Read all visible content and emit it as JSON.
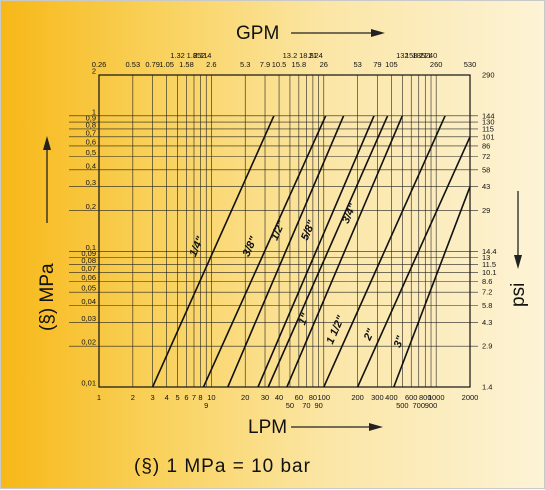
{
  "chart_data": {
    "type": "line",
    "x_scale": "log",
    "y_scale": "log",
    "xlim": [
      1,
      2000
    ],
    "ylim": [
      0.01,
      2
    ],
    "grid": true,
    "top_label": "GPM",
    "bottom_label": "LPM",
    "left_label": "(§) MPa",
    "right_label": "psi",
    "footnote": "(§)   1 MPa = 10 bar",
    "x_ticks_lpm": [
      {
        "v": 1,
        "t": "1"
      },
      {
        "v": 2,
        "t": "2"
      },
      {
        "v": 3,
        "t": "3"
      },
      {
        "v": 4,
        "t": "4"
      },
      {
        "v": 5,
        "t": "5"
      },
      {
        "v": 6,
        "t": "6"
      },
      {
        "v": 7,
        "t": "7"
      },
      {
        "v": 8,
        "t": "8"
      },
      {
        "v": 9,
        "t": "9"
      },
      {
        "v": 10,
        "t": "10"
      },
      {
        "v": 20,
        "t": "20"
      },
      {
        "v": 30,
        "t": "30"
      },
      {
        "v": 40,
        "t": "40"
      },
      {
        "v": 50,
        "t": "50"
      },
      {
        "v": 60,
        "t": "60"
      },
      {
        "v": 70,
        "t": "70"
      },
      {
        "v": 80,
        "t": "80"
      },
      {
        "v": 90,
        "t": "90"
      },
      {
        "v": 100,
        "t": "100"
      },
      {
        "v": 200,
        "t": "200"
      },
      {
        "v": 300,
        "t": "300"
      },
      {
        "v": 400,
        "t": "400"
      },
      {
        "v": 500,
        "t": "500"
      },
      {
        "v": 600,
        "t": "600"
      },
      {
        "v": 700,
        "t": "700"
      },
      {
        "v": 800,
        "t": "800"
      },
      {
        "v": 900,
        "t": "900"
      },
      {
        "v": 1000,
        "t": "1000"
      },
      {
        "v": 2000,
        "t": "2000"
      }
    ],
    "x_ticks_gpm": [
      "0.26",
      "0.53",
      "0.79",
      "1.05",
      "1.32",
      "1.58",
      "1.85",
      "2.11",
      "2.4",
      "2.6",
      "5.3",
      "7.9",
      "10.5",
      "13.2",
      "15.8",
      "18.5",
      "21",
      "24",
      "26",
      "53",
      "79",
      "105",
      "132",
      "158",
      "185",
      "211",
      "240",
      "260",
      "530"
    ],
    "y_ticks_mpa": [
      {
        "v": 2,
        "t": "2"
      },
      {
        "v": 1,
        "t": "1"
      },
      {
        "v": 0.9,
        "t": "0,9"
      },
      {
        "v": 0.8,
        "t": "0,8"
      },
      {
        "v": 0.7,
        "t": "0,7"
      },
      {
        "v": 0.6,
        "t": "0,6"
      },
      {
        "v": 0.5,
        "t": "0,5"
      },
      {
        "v": 0.4,
        "t": "0,4"
      },
      {
        "v": 0.3,
        "t": "0,3"
      },
      {
        "v": 0.2,
        "t": "0,2"
      },
      {
        "v": 0.1,
        "t": "0,1"
      },
      {
        "v": 0.09,
        "t": "0,09"
      },
      {
        "v": 0.08,
        "t": "0,08"
      },
      {
        "v": 0.07,
        "t": "0,07"
      },
      {
        "v": 0.06,
        "t": "0,06"
      },
      {
        "v": 0.05,
        "t": "0,05"
      },
      {
        "v": 0.04,
        "t": "0,04"
      },
      {
        "v": 0.03,
        "t": "0,03"
      },
      {
        "v": 0.02,
        "t": "0,02"
      },
      {
        "v": 0.01,
        "t": "0,01"
      }
    ],
    "y_ticks_psi": [
      {
        "v": 2,
        "t": "290"
      },
      {
        "v": 1,
        "t": "144"
      },
      {
        "v": 0.9,
        "t": "130"
      },
      {
        "v": 0.8,
        "t": "115"
      },
      {
        "v": 0.7,
        "t": "101"
      },
      {
        "v": 0.6,
        "t": "86"
      },
      {
        "v": 0.5,
        "t": "72"
      },
      {
        "v": 0.4,
        "t": "58"
      },
      {
        "v": 0.3,
        "t": "43"
      },
      {
        "v": 0.2,
        "t": "29"
      },
      {
        "v": 0.1,
        "t": "14.4"
      },
      {
        "v": 0.09,
        "t": "13"
      },
      {
        "v": 0.08,
        "t": "11.5"
      },
      {
        "v": 0.07,
        "t": "10.1"
      },
      {
        "v": 0.06,
        "t": "8.6"
      },
      {
        "v": 0.05,
        "t": "7.2"
      },
      {
        "v": 0.04,
        "t": "5.8"
      },
      {
        "v": 0.03,
        "t": "4.3"
      },
      {
        "v": 0.02,
        "t": "2.9"
      },
      {
        "v": 0.01,
        "t": "1.4"
      }
    ],
    "series": [
      {
        "name": "1/4\"",
        "x": [
          3,
          36
        ],
        "y": [
          0.01,
          1
        ]
      },
      {
        "name": "3/8\"",
        "x": [
          8.5,
          104
        ],
        "y": [
          0.01,
          1
        ]
      },
      {
        "name": "1/2\"",
        "x": [
          14,
          150
        ],
        "y": [
          0.01,
          1
        ]
      },
      {
        "name": "5/8\"",
        "x": [
          26,
          280
        ],
        "y": [
          0.01,
          1
        ]
      },
      {
        "name": "3/4\"",
        "x": [
          32,
          370
        ],
        "y": [
          0.01,
          1
        ]
      },
      {
        "name": "1\"",
        "x": [
          47,
          500
        ],
        "y": [
          0.01,
          1
        ]
      },
      {
        "name": "1 1/2\"",
        "x": [
          100,
          1200
        ],
        "y": [
          0.01,
          1
        ]
      },
      {
        "name": "2\"",
        "x": [
          200,
          2000
        ],
        "y": [
          0.01,
          0.7
        ]
      },
      {
        "name": "3\"",
        "x": [
          420,
          2000
        ],
        "y": [
          0.01,
          0.3
        ]
      }
    ]
  }
}
